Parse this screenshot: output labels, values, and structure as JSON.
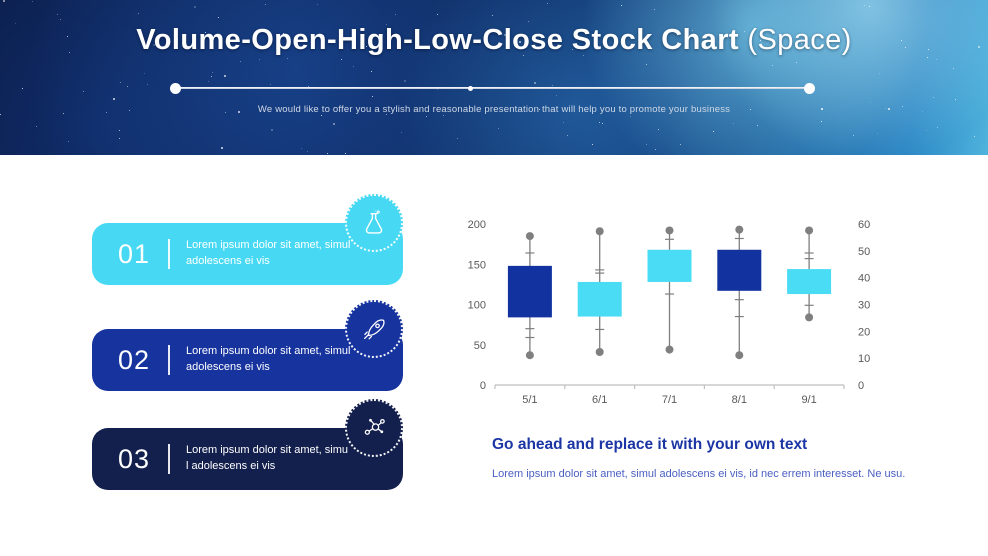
{
  "header": {
    "title_main": "Volume-Open-High-Low-Close Stock Chart",
    "title_suffix": " (Space)",
    "subtitle": "We would like to offer you a stylish and reasonable presentation that will help you to promote your business"
  },
  "items": [
    {
      "number": "01",
      "text": "Lorem ipsum dolor sit amet, simul\nadolescens ei vis",
      "color": "#47d9f3",
      "icon": "flask-icon"
    },
    {
      "number": "02",
      "text": "Lorem ipsum dolor sit amet, simul\nadolescens ei vis",
      "color": "#16339e",
      "icon": "rocket-icon"
    },
    {
      "number": "03",
      "text": "Lorem ipsum dolor sit amet, simu\nl adolescens ei vis",
      "color": "#13204d",
      "icon": "molecule-icon"
    }
  ],
  "chart_data": {
    "type": "stock_vohlc",
    "title": "",
    "categories": [
      "5/1",
      "6/1",
      "7/1",
      "8/1",
      "9/1"
    ],
    "series": [
      {
        "name": "high",
        "values": [
          185,
          191,
          192,
          193,
          192
        ]
      },
      {
        "name": "low",
        "values": [
          37,
          41,
          44,
          37,
          84
        ]
      },
      {
        "name": "open",
        "values": [
          148,
          85,
          128,
          168,
          113
        ]
      },
      {
        "name": "close",
        "values": [
          84,
          128,
          168,
          117,
          144
        ]
      }
    ],
    "directions": [
      "down",
      "up",
      "up",
      "down",
      "up"
    ],
    "whisker_ticks": [
      [
        164,
        70,
        59
      ],
      [
        143,
        139,
        69
      ],
      [
        181,
        113
      ],
      [
        182,
        106,
        85
      ],
      [
        164,
        157,
        99
      ]
    ],
    "left_axis": {
      "max": 200,
      "ticks": [
        0,
        50,
        100,
        150,
        200
      ]
    },
    "right_axis": {
      "max": 60,
      "ticks": [
        0,
        10,
        20,
        30,
        40,
        50,
        60
      ]
    },
    "colors": {
      "up": "#4adcf5",
      "down": "#1232a0",
      "whisker": "#7f7f7f",
      "marker": "#7f7f7f",
      "axis": "#bfbfbf"
    },
    "grid": false,
    "legend": false
  },
  "footer": {
    "heading": "Go ahead and replace it with your own text",
    "body": "Lorem ipsum dolor sit amet, simul adolescens ei vis, id nec errem interesset. Ne usu."
  }
}
